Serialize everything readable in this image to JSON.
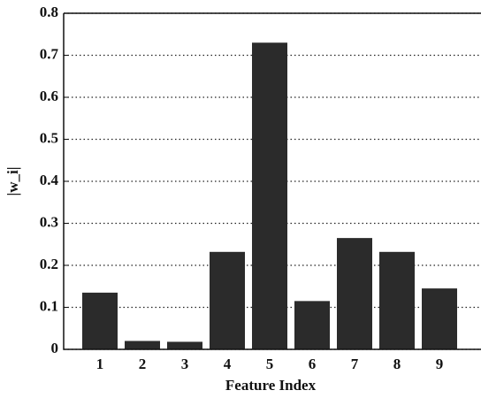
{
  "chart_data": {
    "type": "bar",
    "x_label": "Feature Index",
    "y_label": "|w_i|",
    "categories": [
      "1",
      "2",
      "3",
      "4",
      "5",
      "6",
      "7",
      "8",
      "9"
    ],
    "values": [
      0.135,
      0.02,
      0.018,
      0.232,
      0.73,
      0.115,
      0.265,
      0.232,
      0.145
    ],
    "color": "#2b2b2b",
    "ylim": [
      0,
      0.8
    ],
    "yticks": [
      0,
      0.1,
      0.2,
      0.3,
      0.4,
      0.5,
      0.6,
      0.7,
      0.8
    ],
    "grid": true
  }
}
